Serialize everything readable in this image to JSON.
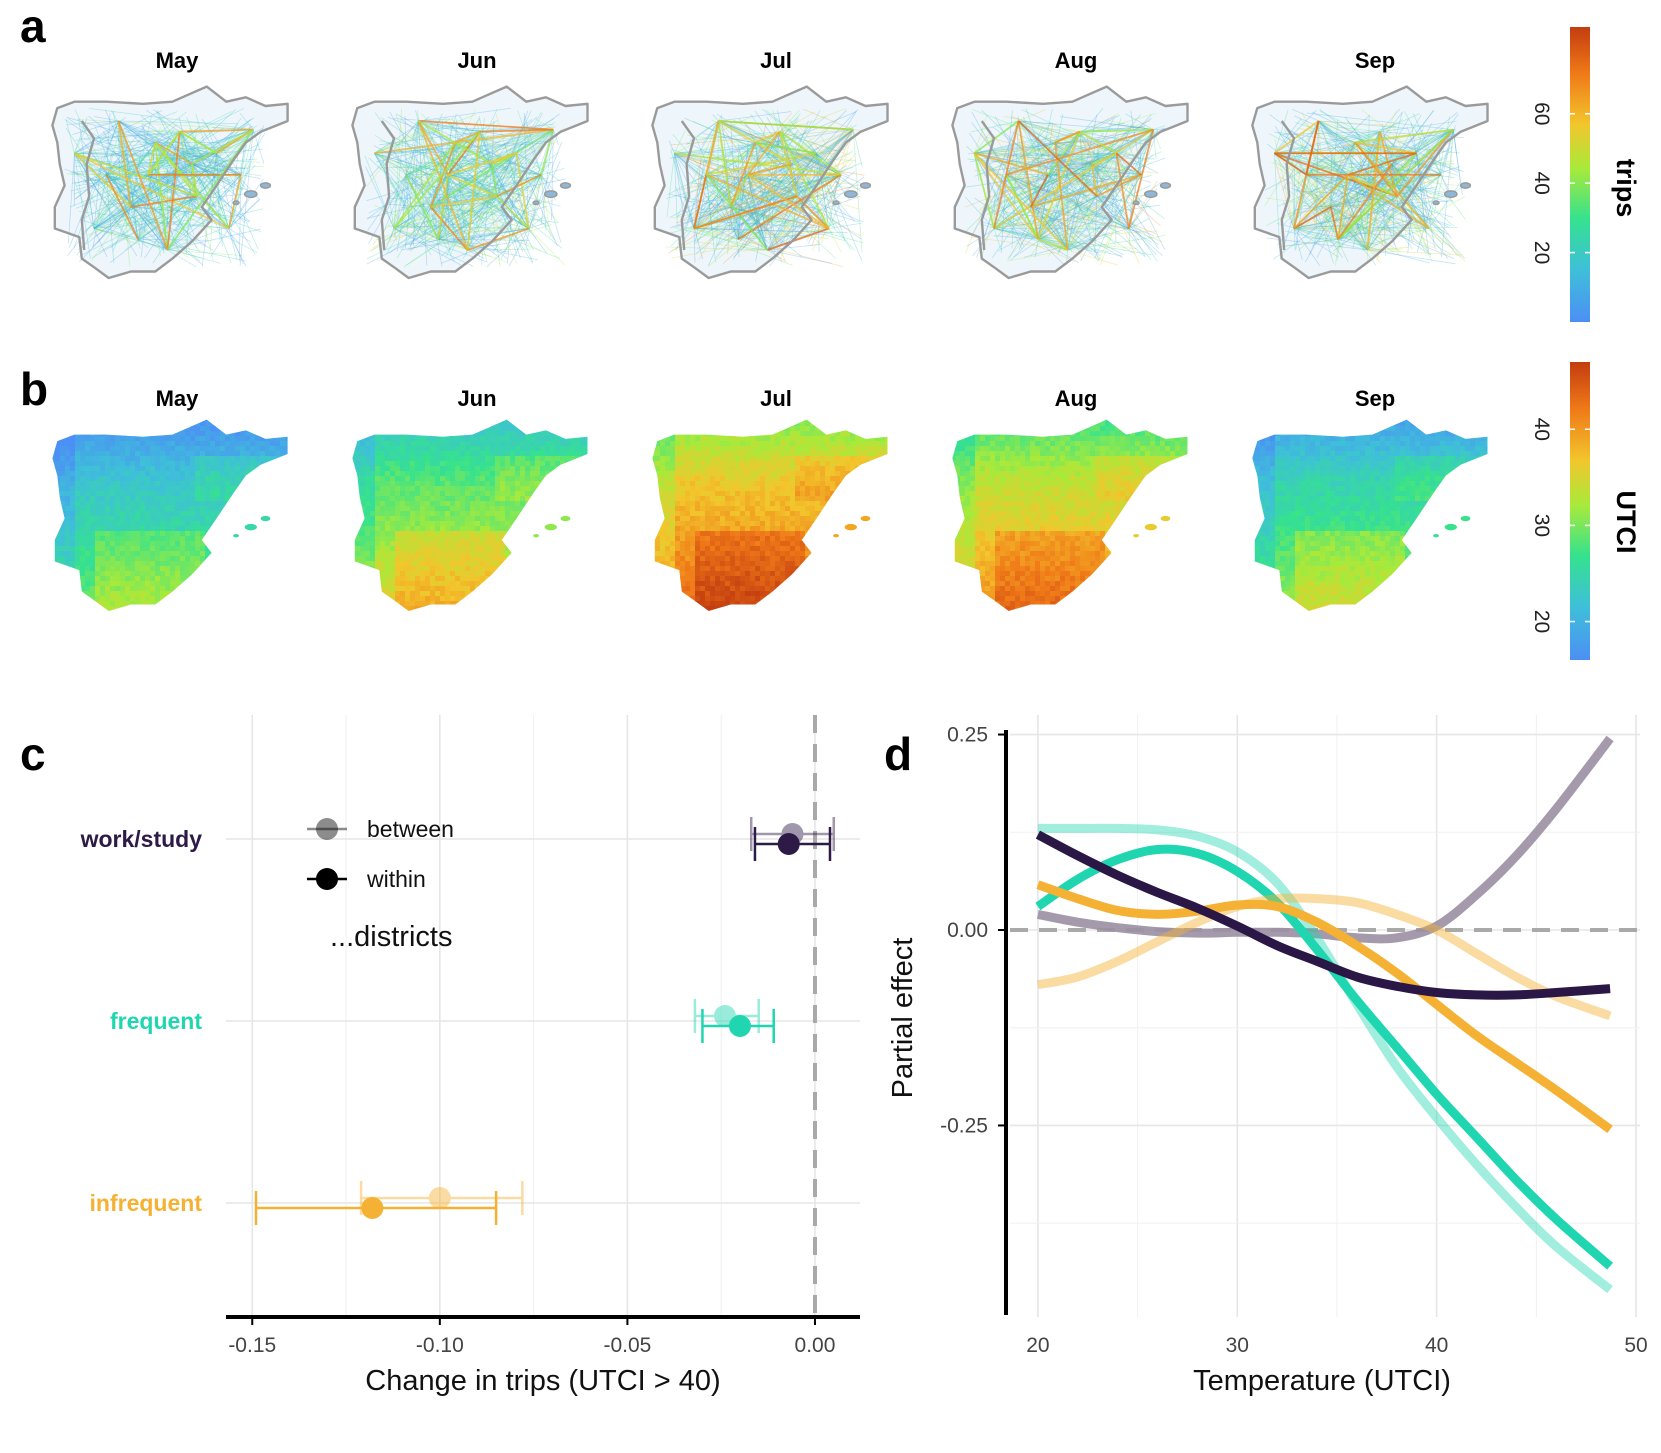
{
  "panels": {
    "a": {
      "letter": "a",
      "months": [
        "May",
        "Jun",
        "Jul",
        "Aug",
        "Sep"
      ],
      "colorbar": {
        "title": "trips",
        "ticks": [
          20,
          40,
          60
        ],
        "range": [
          0,
          85
        ]
      },
      "network_intensity": [
        0.3,
        0.36,
        0.5,
        0.46,
        0.44
      ]
    },
    "b": {
      "letter": "b",
      "months": [
        "May",
        "Jun",
        "Jul",
        "Aug",
        "Sep"
      ],
      "colorbar": {
        "title": "UTCI",
        "ticks": [
          20,
          30,
          40
        ],
        "range": [
          16,
          47
        ]
      },
      "mean_utci": [
        24,
        30,
        38,
        35,
        26
      ]
    },
    "c": {
      "letter": "c"
    },
    "d": {
      "letter": "d"
    }
  },
  "chart_data": [
    {
      "type": "scatter",
      "panel": "c",
      "xlabel": "Change in trips (UTCI > 40)",
      "xticks": [
        -0.15,
        -0.1,
        -0.05,
        0.0
      ],
      "xtick_labels": [
        "-0.15",
        "-0.10",
        "-0.05",
        "0.00"
      ],
      "xlim": [
        -0.157,
        0.012
      ],
      "categories": [
        "work/study",
        "frequent",
        "infrequent"
      ],
      "category_colors": [
        "#2e1a47",
        "#1fd6b0",
        "#f5b133"
      ],
      "series": [
        {
          "name": "between",
          "estimates": [
            -0.006,
            -0.024,
            -0.1
          ],
          "ci_low": [
            -0.017,
            -0.032,
            -0.121
          ],
          "ci_high": [
            0.005,
            -0.015,
            -0.078
          ]
        },
        {
          "name": "within",
          "estimates": [
            -0.007,
            -0.02,
            -0.118
          ],
          "ci_low": [
            -0.016,
            -0.03,
            -0.149
          ],
          "ci_high": [
            0.004,
            -0.011,
            -0.085
          ]
        }
      ],
      "reference_line": 0.0,
      "legend": {
        "items": [
          "between",
          "within"
        ],
        "title": "...districts",
        "placement": "top-left"
      },
      "grid": true
    },
    {
      "type": "line",
      "panel": "d",
      "xlabel": "Temperature (UTCI)",
      "ylabel": "Partial effect",
      "xticks": [
        20,
        30,
        40,
        50
      ],
      "yticks": [
        -0.25,
        0.0,
        0.25
      ],
      "ytick_labels": [
        "-0.25",
        "0.00",
        "0.25"
      ],
      "xlim": [
        18.6,
        50.2
      ],
      "ylim": [
        -0.495,
        0.275
      ],
      "reference_line": 0.0,
      "grid": true,
      "x": [
        20,
        22,
        24,
        26,
        28,
        30,
        32,
        34,
        36,
        38,
        40,
        42,
        44,
        46,
        48.7
      ],
      "series": [
        {
          "color": "#9a8fa3",
          "opacity": 0.9,
          "values": [
            0.02,
            0.01,
            0.003,
            -0.002,
            -0.004,
            -0.003,
            -0.003,
            -0.005,
            -0.01,
            -0.01,
            0.005,
            0.045,
            0.095,
            0.155,
            0.245
          ]
        },
        {
          "color": "#1fd6b0",
          "opacity": 1.0,
          "values": [
            0.03,
            0.065,
            0.09,
            0.103,
            0.098,
            0.075,
            0.035,
            -0.025,
            -0.09,
            -0.15,
            -0.21,
            -0.265,
            -0.32,
            -0.37,
            -0.43
          ]
        },
        {
          "color": "#1fd6b0",
          "opacity": 0.42,
          "values": [
            0.13,
            0.13,
            0.13,
            0.128,
            0.12,
            0.1,
            0.06,
            -0.01,
            -0.095,
            -0.175,
            -0.24,
            -0.3,
            -0.355,
            -0.405,
            -0.46
          ]
        },
        {
          "color": "#f5b133",
          "opacity": 1.0,
          "values": [
            0.058,
            0.04,
            0.025,
            0.02,
            0.024,
            0.032,
            0.03,
            0.01,
            -0.02,
            -0.055,
            -0.095,
            -0.135,
            -0.17,
            -0.205,
            -0.255
          ]
        },
        {
          "color": "#f5b133",
          "opacity": 0.45,
          "values": [
            -0.07,
            -0.06,
            -0.04,
            -0.015,
            0.01,
            0.03,
            0.04,
            0.04,
            0.035,
            0.02,
            0.0,
            -0.03,
            -0.06,
            -0.085,
            -0.11
          ]
        },
        {
          "color": "#2a1745",
          "opacity": 1.0,
          "values": [
            0.122,
            0.095,
            0.07,
            0.048,
            0.028,
            0.005,
            -0.02,
            -0.04,
            -0.06,
            -0.072,
            -0.08,
            -0.083,
            -0.083,
            -0.08,
            -0.075
          ]
        }
      ]
    }
  ]
}
